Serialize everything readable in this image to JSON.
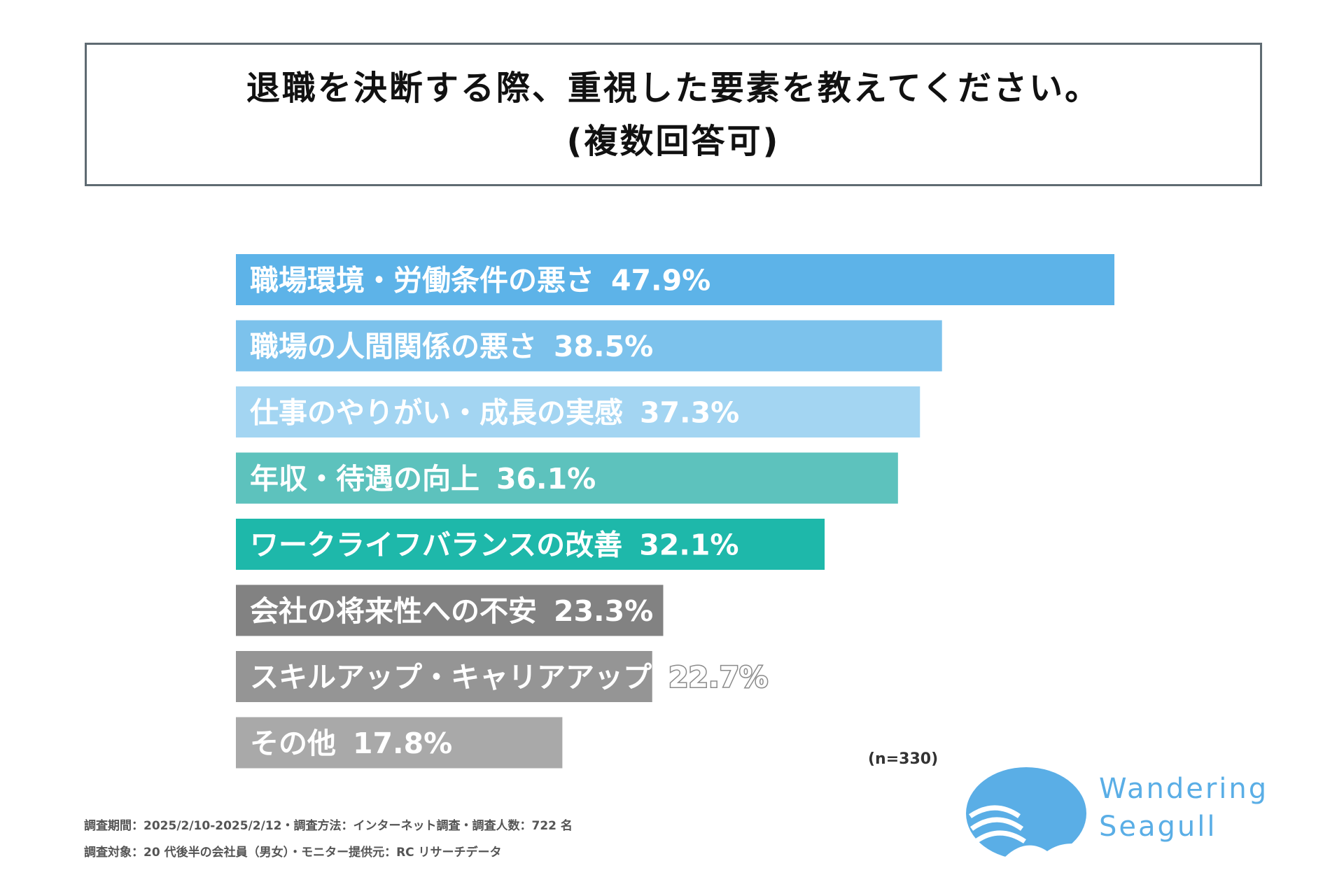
{
  "title": {
    "line1": "退職を決断する際、重視した要素を教えてください。",
    "line2": "(複数回答可)"
  },
  "chart_data": {
    "type": "bar",
    "orientation": "horizontal",
    "categories": [
      "職場環境・労働条件の悪さ",
      "職場の人間関係の悪さ",
      "仕事のやりがい・成長の実感",
      "年収・待遇の向上",
      "ワークライフバランスの改善",
      "会社の将来性への不安",
      "スキルアップ・キャリアアップ",
      "その他"
    ],
    "values": [
      47.9,
      38.5,
      37.3,
      36.1,
      32.1,
      23.3,
      22.7,
      17.8
    ],
    "value_labels": [
      "47.9%",
      "38.5%",
      "37.3%",
      "36.1%",
      "32.1%",
      "23.3%",
      "22.7%",
      "17.8%"
    ],
    "bar_colors": [
      "#5db3e8",
      "#7cc2ec",
      "#a3d5f2",
      "#5dc2bd",
      "#1eb8aa",
      "#828282",
      "#959595",
      "#a9a9a9"
    ],
    "grid": false,
    "legend": "none"
  },
  "sample_note": "(n=330)",
  "footnotes": [
    "調査期間：2025/2/10-2025/2/12・調査方法：インターネット調査・調査人数：722 名",
    "調査対象：20 代後半の会社員（男女）・モニター提供元：RC リサーチデータ"
  ],
  "logo": {
    "line1": "Wandering",
    "line2": "Seagull",
    "color": "#5aaee6"
  }
}
